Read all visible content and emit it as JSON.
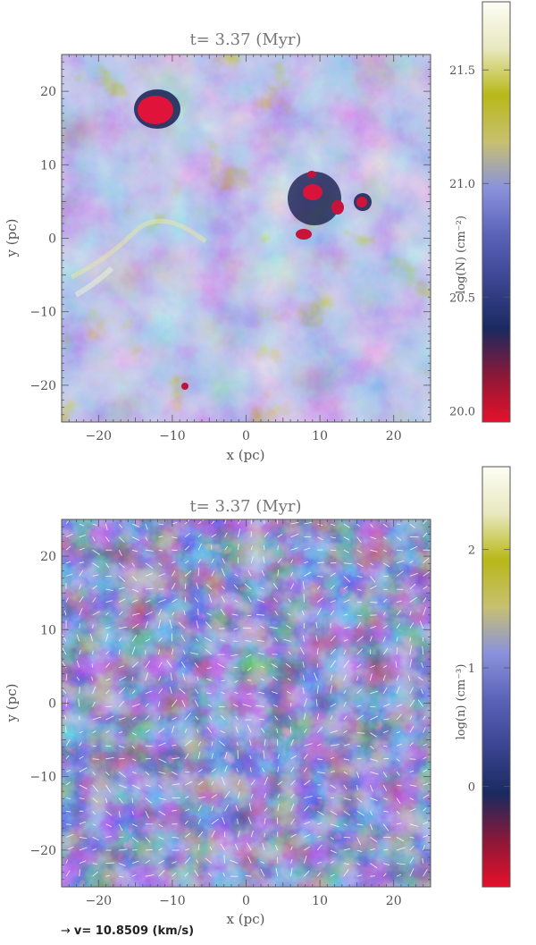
{
  "chart_data": [
    {
      "type": "heatmap",
      "title": "t= 3.37 (Myr)",
      "xlabel": "x (pc)",
      "ylabel": "y (pc)",
      "xlim": [
        -25,
        25
      ],
      "ylim": [
        -25,
        25
      ],
      "xticks": [
        -20,
        -10,
        0,
        10,
        20
      ],
      "yticks": [
        -20,
        -10,
        0,
        10,
        20
      ],
      "colorbar": {
        "label": "log(N) (cm⁻²)",
        "range": [
          19.95,
          21.8
        ],
        "ticks": [
          20.0,
          20.5,
          21.0,
          21.5
        ],
        "tick_labels": [
          "20.0",
          "20.5",
          "21.0",
          "21.5"
        ]
      },
      "grid": false
    },
    {
      "type": "heatmap",
      "title": "t= 3.37 (Myr)",
      "xlabel": "x (pc)",
      "ylabel": "y (pc)",
      "xlim": [
        -25,
        25
      ],
      "ylim": [
        -25,
        25
      ],
      "xticks": [
        -20,
        -10,
        0,
        10,
        20
      ],
      "yticks": [
        -20,
        -10,
        0,
        10,
        20
      ],
      "colorbar": {
        "label": "log(n) (cm⁻³)",
        "range": [
          -0.85,
          2.7
        ],
        "ticks": [
          0,
          1,
          2
        ],
        "tick_labels": [
          "0",
          "1",
          "2"
        ]
      },
      "overlay": "velocity-vectors",
      "grid": false
    }
  ],
  "velocity_key": {
    "text": "v=   10.8509 (km/s)"
  },
  "colors": {
    "colormap": [
      "#e8102a",
      "#8a1838",
      "#1a2a60",
      "#3a4490",
      "#5a62b8",
      "#8a92dc",
      "#c8c070",
      "#b8b818",
      "#e8e8c0",
      "#fdfdf5"
    ],
    "plot_background": "#6a72c8",
    "axes": "#555555"
  }
}
